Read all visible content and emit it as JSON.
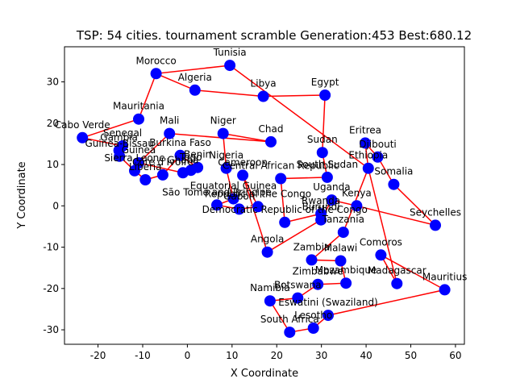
{
  "chart_data": {
    "type": "scatter",
    "title": "TSP: 54 cities. tournament scramble Generation:453 Best:680.12",
    "xlabel": "X Coordinate",
    "ylabel": "Y Coordinate",
    "xlim": [
      -27.5,
      62.0
    ],
    "ylim": [
      -33.5,
      38.5
    ],
    "xticks": [
      -20,
      -10,
      0,
      10,
      20,
      30,
      40,
      50,
      60
    ],
    "yticks": [
      -30,
      -20,
      -10,
      0,
      10,
      20,
      30
    ],
    "grid": false,
    "colors": {
      "route": "#ff0000",
      "city": "#0000ff"
    },
    "cities": [
      {
        "name": "Morocco",
        "x": -7.0,
        "y": 32.0
      },
      {
        "name": "Tunisia",
        "x": 9.5,
        "y": 34.0
      },
      {
        "name": "Algeria",
        "x": 1.7,
        "y": 28.0
      },
      {
        "name": "Libya",
        "x": 17.0,
        "y": 26.5
      },
      {
        "name": "Egypt",
        "x": 30.8,
        "y": 26.8
      },
      {
        "name": "Mauritania",
        "x": -10.9,
        "y": 21.0
      },
      {
        "name": "Cabo Verde",
        "x": -23.5,
        "y": 16.5
      },
      {
        "name": "Mali",
        "x": -4.0,
        "y": 17.5
      },
      {
        "name": "Niger",
        "x": 8.0,
        "y": 17.5
      },
      {
        "name": "Chad",
        "x": 18.7,
        "y": 15.5
      },
      {
        "name": "Senegal",
        "x": -14.5,
        "y": 14.5
      },
      {
        "name": "Gambia",
        "x": -15.3,
        "y": 13.4
      },
      {
        "name": "Guinea-Bissau",
        "x": -15.2,
        "y": 12.0
      },
      {
        "name": "Guinea",
        "x": -10.9,
        "y": 10.4
      },
      {
        "name": "Sierra Leone",
        "x": -11.8,
        "y": 8.5
      },
      {
        "name": "Liberia",
        "x": -9.4,
        "y": 6.3
      },
      {
        "name": "Côte d'Ivoire",
        "x": -5.5,
        "y": 7.5
      },
      {
        "name": "Burkina Faso",
        "x": -1.6,
        "y": 12.2
      },
      {
        "name": "Ghana",
        "x": -1.0,
        "y": 8.0
      },
      {
        "name": "Togo",
        "x": 0.8,
        "y": 8.6
      },
      {
        "name": "Benin",
        "x": 2.3,
        "y": 9.3
      },
      {
        "name": "Nigeria",
        "x": 8.7,
        "y": 9.1
      },
      {
        "name": "Cameroon",
        "x": 12.4,
        "y": 7.4
      },
      {
        "name": "Central African Republic",
        "x": 20.9,
        "y": 6.6
      },
      {
        "name": "Sudan",
        "x": 30.2,
        "y": 12.9
      },
      {
        "name": "Eritrea",
        "x": 39.8,
        "y": 15.2
      },
      {
        "name": "Djibouti",
        "x": 42.6,
        "y": 11.8
      },
      {
        "name": "Ethiopia",
        "x": 40.5,
        "y": 9.1
      },
      {
        "name": "Somalia",
        "x": 46.2,
        "y": 5.2
      },
      {
        "name": "South Sudan",
        "x": 31.3,
        "y": 6.9
      },
      {
        "name": "Uganda",
        "x": 32.3,
        "y": 1.4
      },
      {
        "name": "Kenya",
        "x": 37.9,
        "y": -0.0
      },
      {
        "name": "Rwanda",
        "x": 29.9,
        "y": -1.9
      },
      {
        "name": "Burundi",
        "x": 29.9,
        "y": -3.4
      },
      {
        "name": "Tanzania",
        "x": 34.9,
        "y": -6.4
      },
      {
        "name": "Seychelles",
        "x": 55.5,
        "y": -4.7
      },
      {
        "name": "Equatorial Guinea",
        "x": 10.3,
        "y": 1.7
      },
      {
        "name": "São Tomé and Príncipe",
        "x": 6.6,
        "y": 0.2
      },
      {
        "name": "Gabon",
        "x": 11.6,
        "y": -0.8
      },
      {
        "name": "Republic of the Congo",
        "x": 15.8,
        "y": -0.2
      },
      {
        "name": "Democratic Republic of the Congo",
        "x": 21.8,
        "y": -4.0
      },
      {
        "name": "Angola",
        "x": 17.9,
        "y": -11.2
      },
      {
        "name": "Zambia",
        "x": 27.8,
        "y": -13.1
      },
      {
        "name": "Malawi",
        "x": 34.3,
        "y": -13.3
      },
      {
        "name": "Comoros",
        "x": 43.3,
        "y": -11.9
      },
      {
        "name": "Mozambique",
        "x": 35.5,
        "y": -18.7
      },
      {
        "name": "Zimbabwe",
        "x": 29.2,
        "y": -19.0
      },
      {
        "name": "Madagascar",
        "x": 46.9,
        "y": -18.8
      },
      {
        "name": "Mauritius",
        "x": 57.6,
        "y": -20.3
      },
      {
        "name": "Namibia",
        "x": 18.5,
        "y": -23.0
      },
      {
        "name": "Botswana",
        "x": 24.7,
        "y": -22.3
      },
      {
        "name": "Eswatini (Swaziland)",
        "x": 31.5,
        "y": -26.5
      },
      {
        "name": "Lesotho",
        "x": 28.2,
        "y": -29.6
      },
      {
        "name": "South Africa",
        "x": 22.9,
        "y": -30.6
      }
    ],
    "route": [
      "Morocco",
      "Algeria",
      "Libya",
      "Egypt",
      "Sudan",
      "South Sudan",
      "Central African Republic",
      "Democratic Republic of the Congo",
      "Rwanda",
      "Burundi",
      "Uganda",
      "Kenya",
      "Seychelles",
      "Somalia",
      "Djibouti",
      "Eritrea",
      "Ethiopia",
      "Tanzania",
      "Zambia",
      "Malawi",
      "Mozambique",
      "Zimbabwe",
      "Botswana",
      "Namibia",
      "South Africa",
      "Lesotho",
      "Eswatini (Swaziland)",
      "Mauritius",
      "Comoros",
      "Madagascar",
      "Ethiopia",
      "Tunisia",
      "Morocco",
      "Mauritania",
      "Cabo Verde",
      "Senegal",
      "Gambia",
      "Guinea-Bissau",
      "Sierra Leone",
      "Liberia",
      "Côte d'Ivoire",
      "Burkina Faso",
      "Benin",
      "Togo",
      "Ghana",
      "Guinea",
      "Mali",
      "Chad",
      "Niger",
      "Nigeria",
      "Equatorial Guinea",
      "São Tomé and Príncipe",
      "Gabon",
      "Republic of the Congo",
      "Cameroon",
      "Angola",
      "Burundi"
    ]
  }
}
